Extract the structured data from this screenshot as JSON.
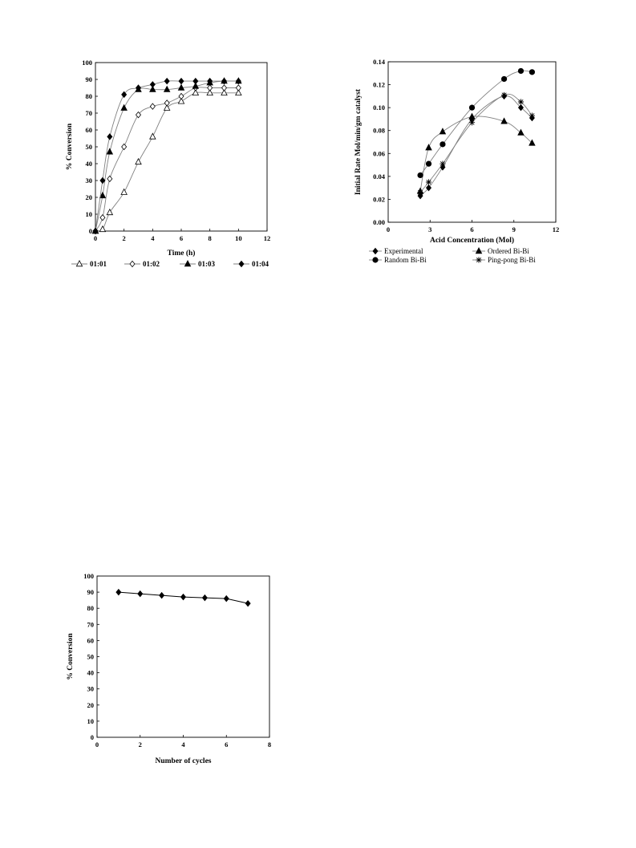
{
  "chart_data": [
    {
      "id": "conversion-vs-time",
      "type": "line",
      "title": "",
      "xlabel": "Time (h)",
      "ylabel": "% Conversion",
      "xlim": [
        0,
        12
      ],
      "ylim": [
        0,
        100
      ],
      "xticks": [
        0,
        2,
        4,
        6,
        8,
        10,
        12
      ],
      "yticks": [
        0,
        10,
        20,
        30,
        40,
        50,
        60,
        70,
        80,
        90,
        100
      ],
      "grid": false,
      "legend_position": "bottom",
      "series": [
        {
          "name": "01:01",
          "marker": "triangle-open",
          "color": "#808080",
          "x": [
            0,
            0.5,
            1,
            2,
            3,
            4,
            5,
            6,
            7,
            8,
            9,
            10
          ],
          "y": [
            0,
            1,
            11,
            23,
            41,
            56,
            73,
            77,
            82,
            82,
            82,
            82
          ]
        },
        {
          "name": "01:02",
          "marker": "diamond-open",
          "color": "#808080",
          "x": [
            0,
            0.5,
            1,
            2,
            3,
            4,
            5,
            6,
            7,
            8,
            9,
            10
          ],
          "y": [
            0,
            8,
            31,
            50,
            69,
            74,
            76,
            80,
            85,
            85,
            85,
            85
          ]
        },
        {
          "name": "01:03",
          "marker": "triangle-filled",
          "color": "#808080",
          "x": [
            0,
            0.5,
            1,
            2,
            3,
            4,
            5,
            6,
            7,
            8,
            9,
            10
          ],
          "y": [
            0,
            21,
            47,
            73,
            84,
            84,
            84,
            85,
            86,
            88,
            89,
            89
          ]
        },
        {
          "name": "01:04",
          "marker": "diamond-filled",
          "color": "#808080",
          "x": [
            0,
            0.5,
            1,
            2,
            3,
            4,
            5,
            6,
            7,
            8,
            9,
            10
          ],
          "y": [
            0,
            30,
            56,
            81,
            85,
            87,
            89,
            89,
            89,
            89,
            89,
            89
          ]
        }
      ]
    },
    {
      "id": "initial-rate-vs-acid",
      "type": "scatter",
      "title": "",
      "xlabel": "Acid Concentration (Mol)",
      "ylabel": "Initial Rate Mol/min/gm catalyst",
      "xlim": [
        0,
        12
      ],
      "ylim": [
        0,
        0.14
      ],
      "xticks": [
        0,
        3,
        6,
        9,
        12
      ],
      "yticks": [
        "0.00",
        "0.02",
        "0.04",
        "0.06",
        "0.08",
        "0.10",
        "0.12",
        "0.14"
      ],
      "grid": false,
      "legend_position": "bottom",
      "series": [
        {
          "name": "Experimental",
          "marker": "diamond-filled",
          "color": "#808080",
          "x": [
            2.3,
            2.9,
            3.9,
            6.0,
            8.3,
            9.5,
            10.3
          ],
          "y": [
            0.023,
            0.03,
            0.048,
            0.09,
            0.11,
            0.1,
            0.091
          ]
        },
        {
          "name": "Ordered Bi-Bi",
          "marker": "triangle-filled",
          "color": "#808080",
          "x": [
            2.3,
            2.9,
            3.9,
            6.0,
            8.3,
            9.5,
            10.3
          ],
          "y": [
            0.027,
            0.065,
            0.079,
            0.092,
            0.088,
            0.078,
            0.069
          ]
        },
        {
          "name": "Random Bi-Bi",
          "marker": "circle-filled",
          "color": "#808080",
          "x": [
            2.3,
            2.9,
            3.9,
            6.0,
            8.3,
            9.5,
            10.3
          ],
          "y": [
            0.041,
            0.051,
            0.068,
            0.1,
            0.125,
            0.132,
            0.131
          ]
        },
        {
          "name": "Ping-pong Bi-Bi",
          "marker": "star",
          "color": "#808080",
          "x": [
            2.3,
            2.9,
            3.9,
            6.0,
            8.3,
            9.5,
            10.3
          ],
          "y": [
            0.026,
            0.035,
            0.051,
            0.087,
            0.111,
            0.105,
            0.093
          ]
        }
      ]
    },
    {
      "id": "conversion-vs-cycles",
      "type": "line",
      "title": "",
      "xlabel": "Number of cycles",
      "ylabel": "% Conversion",
      "xlim": [
        0,
        8
      ],
      "ylim": [
        0,
        100
      ],
      "xticks": [
        0,
        2,
        4,
        6,
        8
      ],
      "yticks": [
        0,
        10,
        20,
        30,
        40,
        50,
        60,
        70,
        80,
        90,
        100
      ],
      "grid": false,
      "legend_position": "none",
      "series": [
        {
          "name": "",
          "marker": "diamond-filled",
          "color": "#000000",
          "x": [
            1,
            2,
            3,
            4,
            5,
            6,
            7
          ],
          "y": [
            90,
            89,
            88,
            87,
            86.5,
            86,
            83
          ]
        }
      ]
    }
  ]
}
